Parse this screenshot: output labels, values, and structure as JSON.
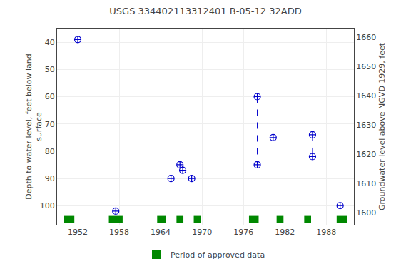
{
  "chart_data": {
    "type": "scatter",
    "title": "USGS 334402113312401 B-05-12 32ADD",
    "ylabel": "Depth to water level, feet below land\nsurface",
    "y2label": "Groundwater level above NGVD 1929, feet",
    "x": [
      1952.0,
      1957.5,
      1965.5,
      1966.8,
      1967.2,
      1968.5,
      1978.0,
      1978.0,
      1980.3,
      1986.0,
      1986.0,
      1990.0
    ],
    "values": [
      39,
      102,
      90,
      85,
      87,
      90,
      60,
      85,
      75,
      74,
      82,
      100
    ],
    "color": "#0000cc",
    "marker": "circle-cross",
    "connections": [
      [
        6,
        7
      ],
      [
        9,
        10
      ]
    ],
    "line_style": "dashed",
    "periods": {
      "name": "Period of approved data",
      "color": "#008800",
      "ranges": [
        [
          1950.0,
          1951.5
        ],
        [
          1956.5,
          1958.5
        ],
        [
          1963.5,
          1964.8
        ],
        [
          1966.3,
          1967.3
        ],
        [
          1968.8,
          1969.8
        ],
        [
          1976.8,
          1978.2
        ],
        [
          1980.8,
          1981.8
        ],
        [
          1984.8,
          1985.8
        ],
        [
          1989.5,
          1991.0
        ]
      ]
    },
    "xlim": [
      1949,
      1992
    ],
    "xticks": [
      1952,
      1958,
      1964,
      1970,
      1976,
      1982,
      1988
    ],
    "ylim": [
      107,
      35
    ],
    "yticks": [
      40,
      50,
      60,
      70,
      80,
      90,
      100
    ],
    "y2lim": [
      1596,
      1663
    ],
    "y2ticks": [
      1600,
      1610,
      1620,
      1630,
      1640,
      1650,
      1660
    ],
    "grid": true,
    "legend": "bottom"
  }
}
